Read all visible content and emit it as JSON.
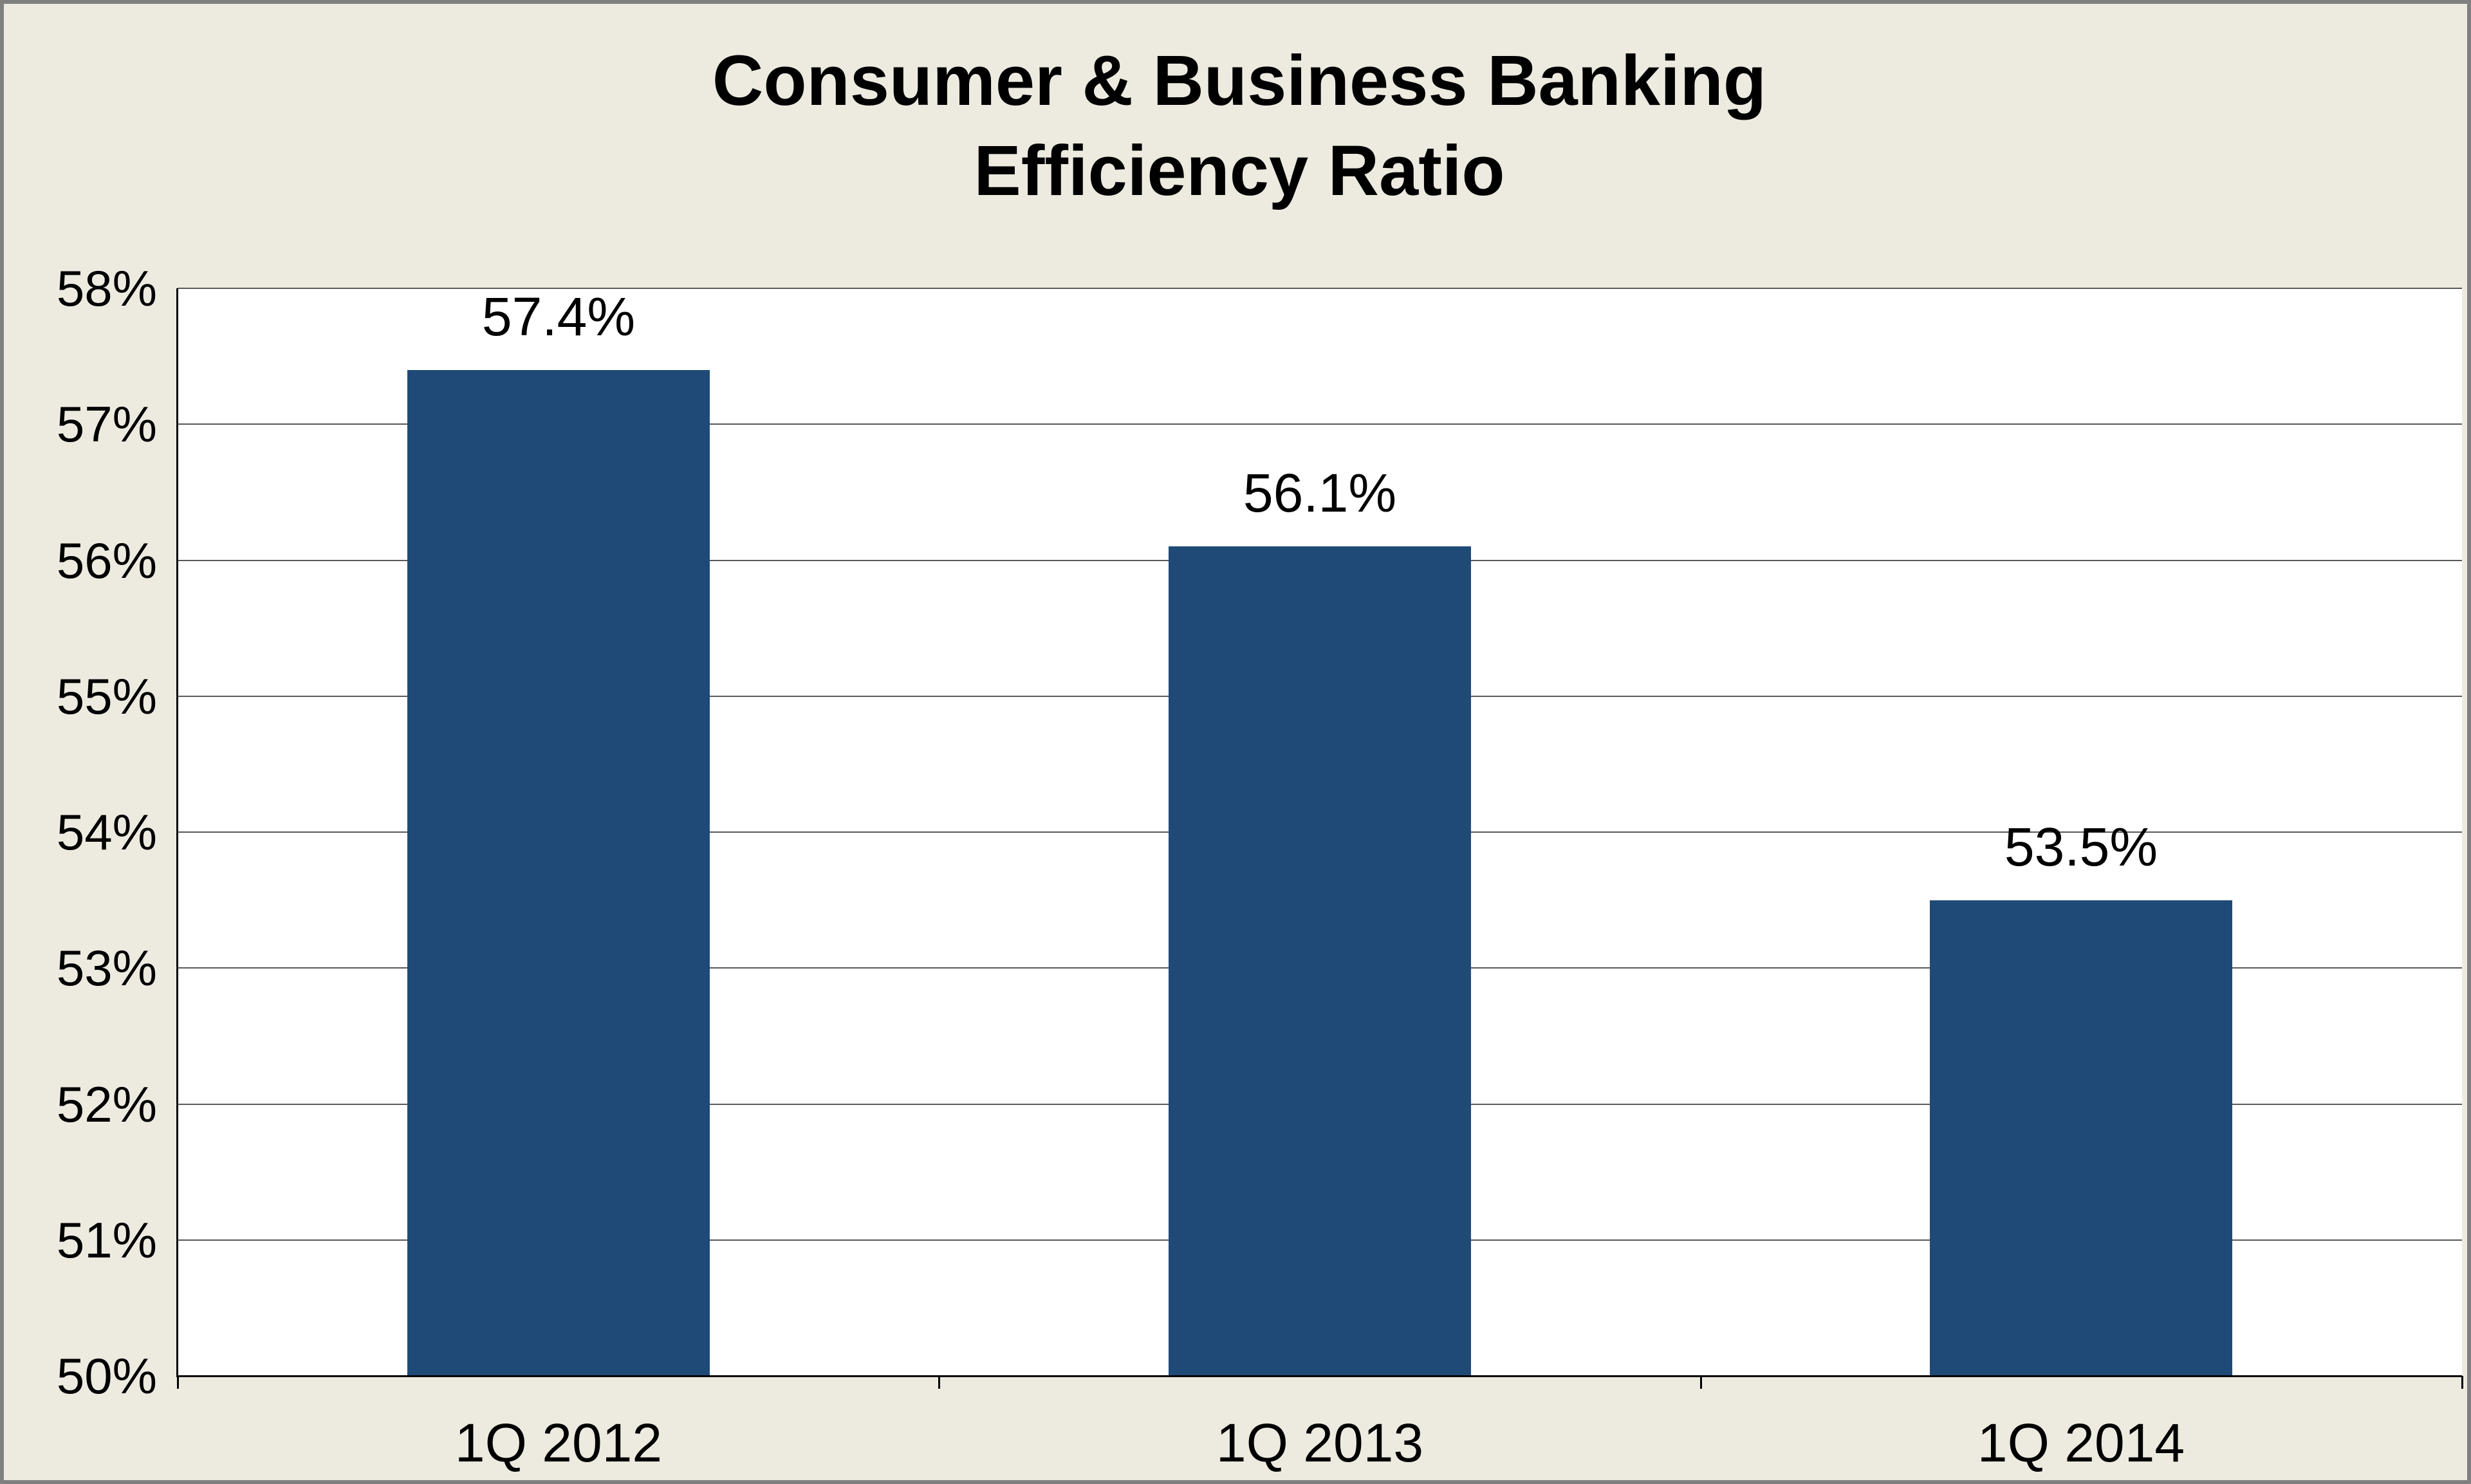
{
  "chart_data": {
    "type": "bar",
    "title": "Consumer & Business Banking Efficiency Ratio",
    "title_line1": "Consumer & Business Banking",
    "title_line2": "Efficiency Ratio",
    "categories": [
      "1Q 2012",
      "1Q 2013",
      "1Q 2014"
    ],
    "values": [
      57.4,
      56.1,
      53.5
    ],
    "value_labels": [
      "57.4%",
      "56.1%",
      "53.5%"
    ],
    "xlabel": "",
    "ylabel": "",
    "ylim": [
      50,
      58
    ],
    "ytick_step": 1,
    "ytick_labels": [
      "50%",
      "51%",
      "52%",
      "53%",
      "54%",
      "55%",
      "56%",
      "57%",
      "58%"
    ],
    "grid": true,
    "legend": "none",
    "bar_color": "#1f4a78",
    "background_color": "#edebe0",
    "plot_background": "#ffffff",
    "gridline_color": "#595959",
    "axis_color": "#000000",
    "border_color": "#7f7f7f",
    "text_color": "#000000"
  }
}
